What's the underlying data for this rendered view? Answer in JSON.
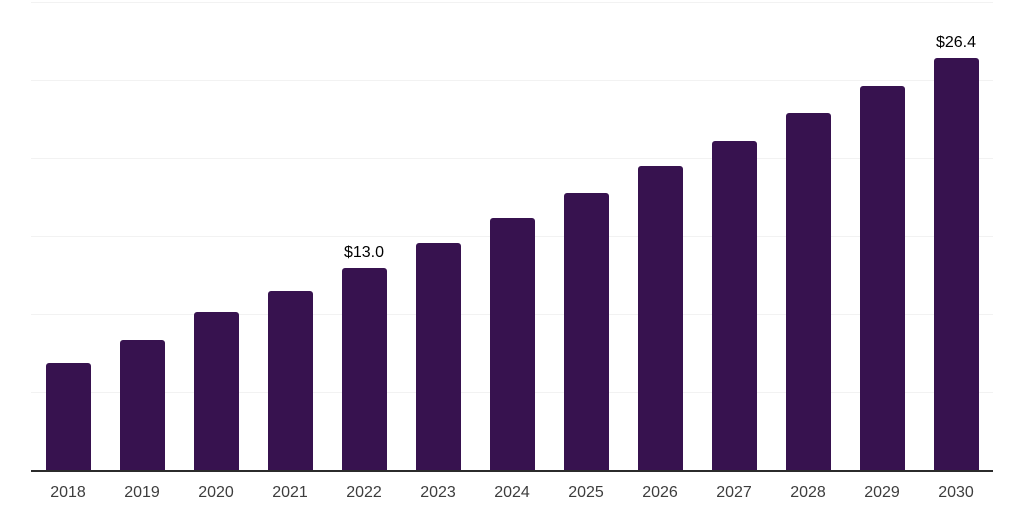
{
  "chart_data": {
    "type": "bar",
    "title": "",
    "categories": [
      "2018",
      "2019",
      "2020",
      "2021",
      "2022",
      "2023",
      "2024",
      "2025",
      "2026",
      "2027",
      "2028",
      "2029",
      "2030"
    ],
    "values": [
      6.9,
      8.4,
      10.2,
      11.5,
      13.0,
      14.6,
      16.2,
      17.8,
      19.5,
      21.1,
      22.9,
      24.6,
      26.4
    ],
    "annotations": [
      {
        "category": "2022",
        "text": "$13.0"
      },
      {
        "category": "2030",
        "text": "$26.4"
      }
    ],
    "xlabel": "",
    "ylabel": "",
    "ylim": [
      0,
      30
    ],
    "gridline_step": 5,
    "grid": "horizontal",
    "legend": "none",
    "y_tick_labels_visible": false,
    "colors": {
      "bar": "#37124f",
      "gridline": "#f2f2f2",
      "axis_line": "#2b2b2b",
      "tick_label": "#3d3d3d",
      "value_label": "#000000",
      "background": "#ffffff"
    }
  }
}
